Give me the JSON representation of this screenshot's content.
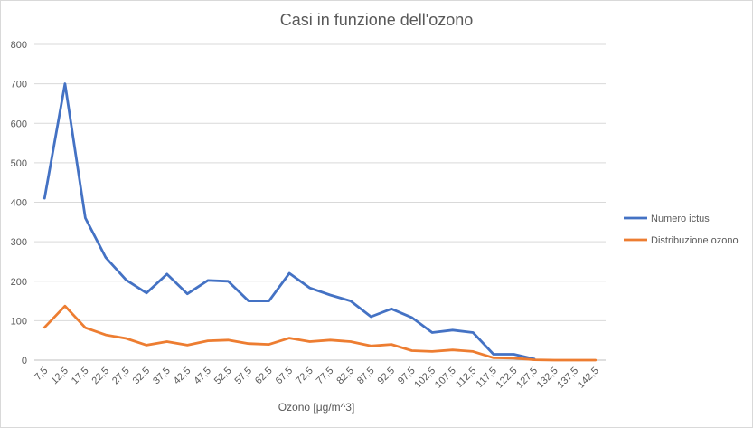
{
  "chart_data": {
    "type": "line",
    "title": "Casi in funzione dell'ozono",
    "xlabel": "Ozono [μg/m^3]",
    "ylabel": "",
    "ylim": [
      0,
      800
    ],
    "yticks": [
      0,
      100,
      200,
      300,
      400,
      500,
      600,
      700,
      800
    ],
    "grid": true,
    "legend_position": "right",
    "categories": [
      "7,5",
      "12,5",
      "17,5",
      "22,5",
      "27,5",
      "32,5",
      "37,5",
      "42,5",
      "47,5",
      "52,5",
      "57,5",
      "62,5",
      "67,5",
      "72,5",
      "77,5",
      "82,5",
      "87,5",
      "92,5",
      "97,5",
      "102,5",
      "107,5",
      "112,5",
      "117,5",
      "122,5",
      "127,5",
      "132,5",
      "137,5",
      "142,5"
    ],
    "series": [
      {
        "name": "Numero ictus",
        "color": "#4472c4",
        "values": [
          410,
          700,
          360,
          260,
          203,
          170,
          218,
          168,
          202,
          200,
          150,
          150,
          220,
          183,
          165,
          150,
          110,
          130,
          108,
          70,
          76,
          70,
          15,
          15,
          3,
          null,
          null,
          null
        ]
      },
      {
        "name": "Distribuzione ozono",
        "color": "#ed7d31",
        "values": [
          83,
          137,
          82,
          64,
          55,
          38,
          47,
          38,
          49,
          51,
          42,
          40,
          56,
          47,
          51,
          47,
          36,
          40,
          24,
          22,
          26,
          22,
          6,
          5,
          1,
          0,
          0,
          0
        ]
      }
    ]
  }
}
